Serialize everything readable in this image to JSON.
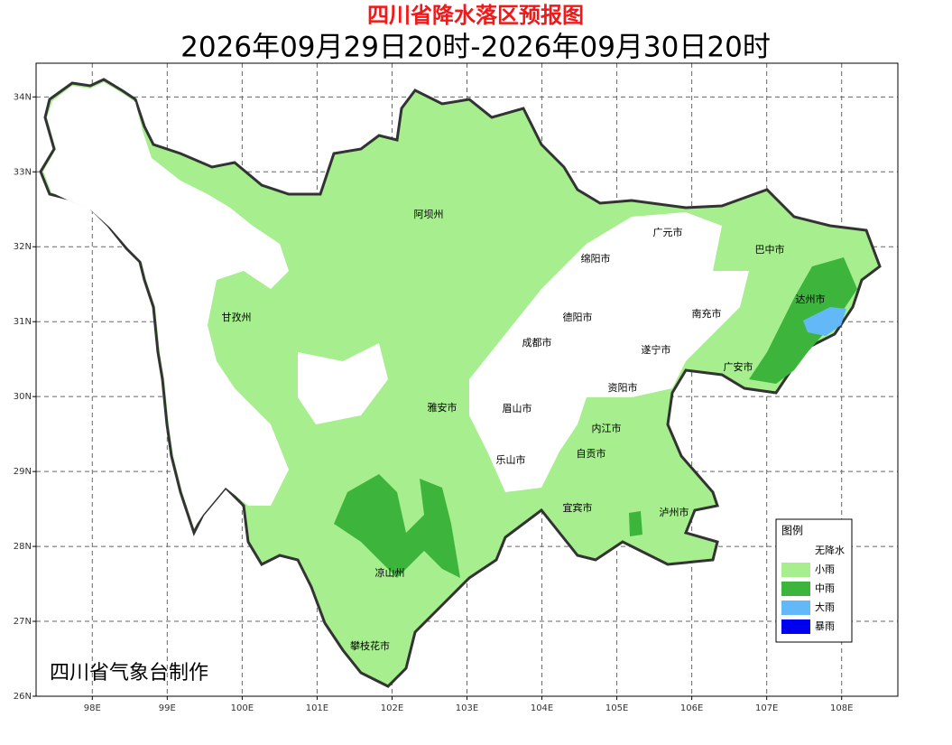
{
  "map": {
    "title": "四川省降水落区预报图",
    "subtitle": "2026年09月29日20时-2026年09月30日20时",
    "xlim": [
      97.25,
      108.75
    ],
    "ylim": [
      26,
      34.45
    ],
    "xticks": [
      {
        "value": 98,
        "label": "98E"
      },
      {
        "value": 99,
        "label": "99E"
      },
      {
        "value": 100,
        "label": "100E"
      },
      {
        "value": 101,
        "label": "101E"
      },
      {
        "value": 102,
        "label": "102E"
      },
      {
        "value": 103,
        "label": "103E"
      },
      {
        "value": 104,
        "label": "104E"
      },
      {
        "value": 105,
        "label": "105E"
      },
      {
        "value": 106,
        "label": "106E"
      },
      {
        "value": 107,
        "label": "107E"
      },
      {
        "value": 108,
        "label": "108E"
      }
    ],
    "yticks": [
      {
        "value": 26,
        "label": "26N"
      },
      {
        "value": 27,
        "label": "27N"
      },
      {
        "value": 28,
        "label": "28N"
      },
      {
        "value": 29,
        "label": "29N"
      },
      {
        "value": 30,
        "label": "30N"
      },
      {
        "value": 31,
        "label": "31N"
      },
      {
        "value": 32,
        "label": "32N"
      },
      {
        "value": 33,
        "label": "33N"
      },
      {
        "value": 34,
        "label": "34N"
      }
    ],
    "cities": [
      "阿坝州",
      "甘孜州",
      "雅安市",
      "眉山市",
      "成都市",
      "德阳市",
      "绵阳市",
      "广元市",
      "巴中市",
      "达州市",
      "南充市",
      "遂宁市",
      "广安市",
      "资阳市",
      "内江市",
      "自贡市",
      "乐山市",
      "宜宾市",
      "泸州市",
      "凉山州",
      "攀枝花市"
    ],
    "legend": {
      "title": "图例",
      "items": [
        {
          "name": "无降水",
          "color": "#ffffff"
        },
        {
          "name": "小雨",
          "color": "#a6ee8e"
        },
        {
          "name": "中雨",
          "color": "#3db53d"
        },
        {
          "name": "大雨",
          "color": "#63b8f8"
        },
        {
          "name": "暴雨",
          "color": "#0000f0"
        }
      ]
    },
    "credit": "四川省气象台制作"
  }
}
